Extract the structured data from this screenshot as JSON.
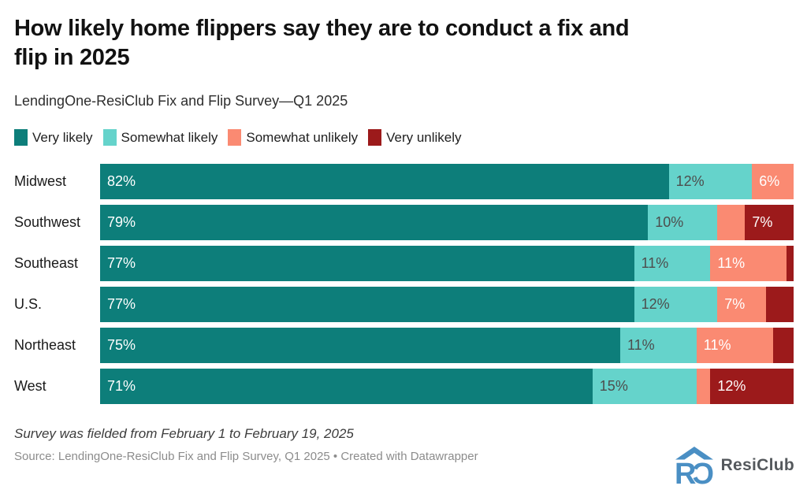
{
  "header": {
    "title": "How likely home flippers say they are to conduct a fix and flip in 2025",
    "title_line1": "How likely home flippers say they are to conduct a fix and",
    "title_line2": "flip in 2025",
    "subtitle": "LendingOne-ResiClub Fix and Flip Survey—Q1 2025"
  },
  "legend": {
    "items": [
      {
        "label": "Very likely",
        "color": "#0d7e7a"
      },
      {
        "label": "Somewhat likely",
        "color": "#65d3cb"
      },
      {
        "label": "Somewhat unlikely",
        "color": "#fa8a72"
      },
      {
        "label": "Very unlikely",
        "color": "#9c1a1b"
      }
    ]
  },
  "colors": {
    "very_likely": "#0d7e7a",
    "somewhat_likely": "#65d3cb",
    "somewhat_unlikely": "#fa8a72",
    "very_unlikely": "#9c1a1b",
    "logo_blue": "#4a8fc4"
  },
  "chart_data": {
    "type": "bar",
    "variant": "horizontal-stacked",
    "unit": "%",
    "axis_range": [
      0,
      100
    ],
    "grid": false,
    "legend_position": "top",
    "categories": [
      "Midwest",
      "Southwest",
      "Southeast",
      "U.S.",
      "Northeast",
      "West"
    ],
    "series": [
      {
        "name": "Very likely",
        "color": "#0d7e7a",
        "values": [
          82,
          79,
          77,
          77,
          75,
          71
        ]
      },
      {
        "name": "Somewhat likely",
        "color": "#65d3cb",
        "values": [
          12,
          10,
          11,
          12,
          11,
          15
        ]
      },
      {
        "name": "Somewhat unlikely",
        "color": "#fa8a72",
        "values": [
          6,
          4,
          11,
          7,
          11,
          2
        ]
      },
      {
        "name": "Very unlikely",
        "color": "#9c1a1b",
        "values": [
          0,
          7,
          1,
          4,
          3,
          12
        ]
      }
    ],
    "bar_labels": [
      [
        "82%",
        "12%",
        "6%",
        ""
      ],
      [
        "79%",
        "10%",
        "",
        "7%"
      ],
      [
        "77%",
        "11%",
        "11%",
        ""
      ],
      [
        "77%",
        "12%",
        "7%",
        ""
      ],
      [
        "75%",
        "11%",
        "11%",
        ""
      ],
      [
        "71%",
        "15%",
        "",
        "12%"
      ]
    ]
  },
  "footer": {
    "note": "Survey was fielded from February 1 to February 19, 2025",
    "source": "Source: LendingOne-ResiClub Fix and Flip Survey, Q1 2025 • Created with Datawrapper",
    "logo_text": "ResiClub"
  }
}
